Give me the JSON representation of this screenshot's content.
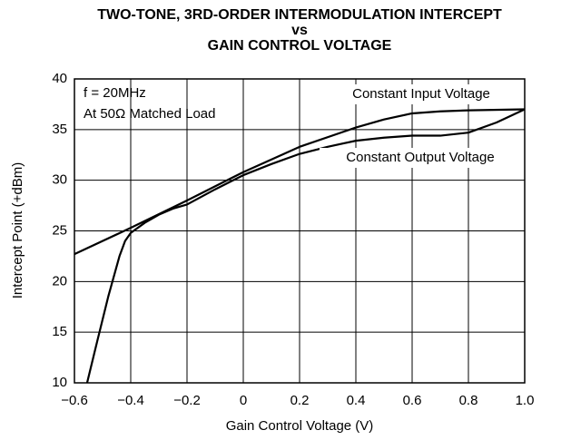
{
  "chart_data": {
    "type": "line",
    "title": [
      "TWO-TONE, 3RD-ORDER INTERMODULATION INTERCEPT",
      "vs",
      "GAIN CONTROL VOLTAGE"
    ],
    "x_label": "Gain Control Voltage (V)",
    "y_label": "Intercept Point (+dBm)",
    "annotations": [
      "f = 20MHz",
      "At 50Ω Matched Load"
    ],
    "series": [
      {
        "name": "Constant Input Voltage",
        "color": "#000000",
        "x": [
          -0.6,
          -0.4,
          -0.2,
          0,
          0.2,
          0.4,
          0.5,
          0.6,
          0.7,
          0.8,
          1.0
        ],
        "values": [
          22.7,
          25.3,
          28,
          30.8,
          33.3,
          35.2,
          36,
          36.6,
          36.8,
          36.9,
          37
        ]
      },
      {
        "name": "Constant Output Voltage",
        "color": "#000000",
        "x": [
          -0.555,
          -0.52,
          -0.48,
          -0.44,
          -0.42,
          -0.4,
          -0.35,
          -0.3,
          -0.25,
          -0.2,
          -0.1,
          0,
          0.1,
          0.2,
          0.3,
          0.4,
          0.5,
          0.6,
          0.7,
          0.8,
          0.9,
          1.0
        ],
        "values": [
          10,
          14,
          18.5,
          22.5,
          24,
          24.8,
          25.8,
          26.6,
          27.2,
          27.6,
          29.1,
          30.5,
          31.6,
          32.6,
          33.3,
          33.9,
          34.2,
          34.4,
          34.4,
          34.7,
          35.7,
          37
        ]
      }
    ],
    "xlim": [
      -0.6,
      1.0
    ],
    "xticks": [
      {
        "value": -0.6,
        "label": "−0.6"
      },
      {
        "value": -0.4,
        "label": "−0.4"
      },
      {
        "value": -0.2,
        "label": "−0.2"
      },
      0,
      0.2,
      0.4,
      0.6,
      0.8,
      {
        "value": 1.0,
        "label": "1.0"
      }
    ],
    "ylim": [
      10,
      40
    ],
    "yticks": [
      10,
      15,
      20,
      25,
      30,
      35,
      40
    ],
    "grid": true
  }
}
